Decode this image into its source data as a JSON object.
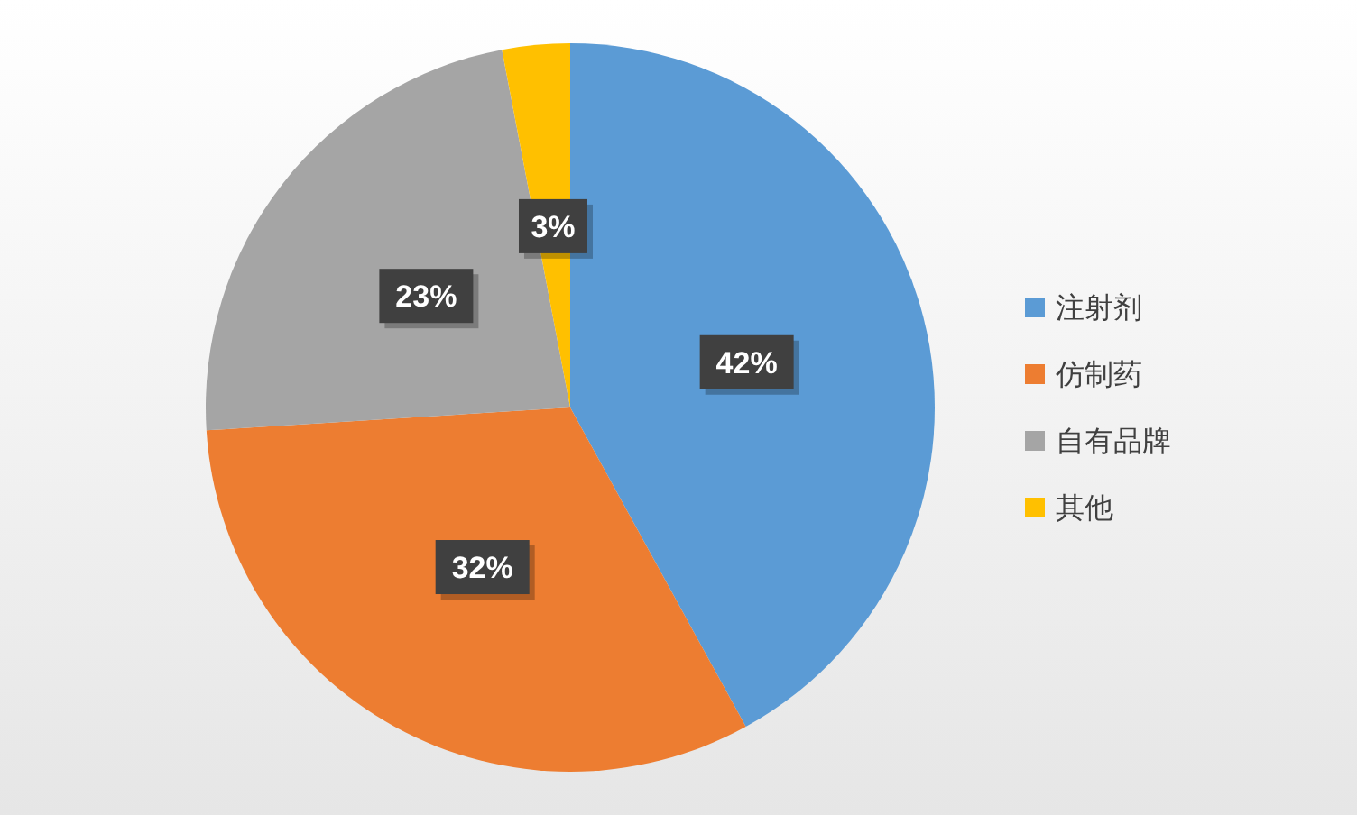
{
  "chart_data": {
    "type": "pie",
    "categories": [
      "注射剂",
      "仿制药",
      "自有品牌",
      "其他"
    ],
    "values": [
      42,
      32,
      23,
      3
    ],
    "colors": [
      "#5b9bd5",
      "#ed7d31",
      "#a5a5a5",
      "#ffc000"
    ],
    "value_labels": [
      "42%",
      "32%",
      "23%",
      "3%"
    ],
    "legend": "right"
  }
}
